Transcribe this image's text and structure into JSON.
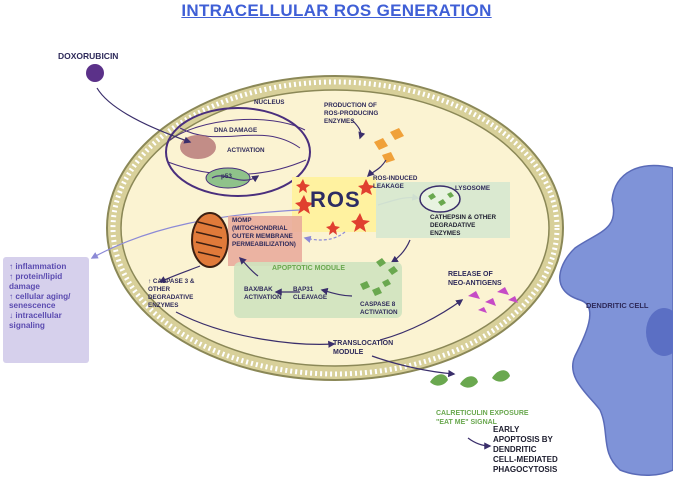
{
  "title": "INTRACELLULAR ROS GENERATION",
  "labels": {
    "doxorubicin": "DOXORUBICIN",
    "nucleus": "NUCLEUS",
    "dna_damage": "DNA DAMAGE",
    "activation": "ACTIVATION",
    "p53": "p53",
    "production": "PRODUCTION OF ROS-PRODUCING ENZYMES",
    "production_l1": "PRODUCTION OF",
    "production_l2": "ROS-PRODUCING",
    "production_l3": "ENZYMES",
    "ros": "ROS",
    "ros_leakage_l1": "ROS-INDUCED",
    "ros_leakage_l2": "LEAKAGE",
    "lysosome": "LYSOSOME",
    "cathepsin_l1": "CATHEPSIN & OTHER",
    "cathepsin_l2": "DEGRADATIVE",
    "cathepsin_l3": "ENZYMES",
    "momp_l1": "MOMP",
    "momp_l2": "(MITOCHONDRIAL",
    "momp_l3": "OUTER MEMBRANE",
    "momp_l4": "PERMEABILIZATION)",
    "apoptotic_module": "APOPTOTIC MODULE",
    "caspase3_l1": "↑ CASPASE 3 &",
    "caspase3_l2": "OTHER",
    "caspase3_l3": "DEGRADATIVE",
    "caspase3_l4": "ENZYMES",
    "baxbak_l1": "BAX/BAK",
    "baxbak_l2": "ACTIVATION",
    "bap31_l1": "BAP31",
    "bap31_l2": "CLEAVAGE",
    "caspase8_l1": "CASPASE 8",
    "caspase8_l2": "ACTIVATION",
    "neo_l1": "RELEASE OF",
    "neo_l2": "NEO-ANTIGENS",
    "translocation_l1": "TRANSLOCATION",
    "translocation_l2": "MODULE",
    "calreticulin_l1": "CALRETICULIN EXPOSURE",
    "calreticulin_l2": "\"EAT ME\" SIGNAL",
    "early_l1": "EARLY",
    "early_l2": "APOPTOSIS BY",
    "early_l3": "DENDRITIC",
    "early_l4": "CELL-MEDIATED",
    "early_l5": "PHAGOCYTOSIS",
    "dendritic_cell": "DENDRITIC CELL"
  },
  "effects": [
    "↑ inflammation",
    "↑ protein/lipid damage",
    "↑ cellular aging/ senescence",
    "↓ intracellular signaling"
  ],
  "effects_lines": [
    "↑ inflammation",
    "↑ protein/lipid",
    "damage",
    "↑ cellular aging/",
    "senescence",
    "↓ intracellular",
    "signaling"
  ],
  "colors": {
    "title": "#3f5fd6",
    "cytoplasm": "#fbf3d2",
    "membrane": "#d9d29c",
    "ros_box": "#fff2a0",
    "ros_star": "#e0402f",
    "module_green": "#cfe3bf",
    "lysosome_box": "#d6e8cf",
    "momp_box": "#e8a79a",
    "effects_box": "#c8c0e6",
    "dendritic": "#7f93d8",
    "doxorubicin": "#5b3189",
    "neo_antigen": "#c64bc6",
    "enzyme": "#f0a13a"
  }
}
